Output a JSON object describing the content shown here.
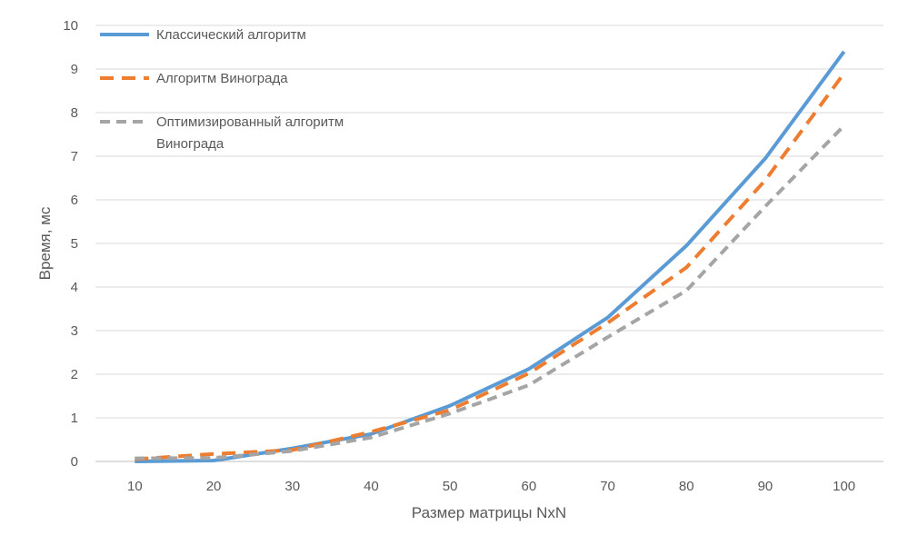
{
  "chart_data": {
    "type": "line",
    "title": "",
    "xlabel": "Размер матрицы NxN",
    "ylabel": "Время, мс",
    "categories": [
      "10",
      "20",
      "30",
      "40",
      "50",
      "60",
      "70",
      "80",
      "90",
      "100"
    ],
    "ylim": [
      0,
      10
    ],
    "yticks": [
      "0",
      "1",
      "2",
      "3",
      "4",
      "5",
      "6",
      "7",
      "8",
      "9",
      "10"
    ],
    "grid": true,
    "legend_position": "top-left",
    "series": [
      {
        "name": "Классический алгоритм",
        "color": "#5b9bd5",
        "style": "solid",
        "values": [
          0.0,
          0.02,
          0.3,
          0.63,
          1.28,
          2.12,
          3.3,
          4.95,
          6.95,
          9.4
        ]
      },
      {
        "name": "Алгоритм Винограда",
        "color": "#ed7d31",
        "style": "dashed",
        "values": [
          0.05,
          0.17,
          0.26,
          0.68,
          1.18,
          2.02,
          3.18,
          4.45,
          6.45,
          8.9
        ]
      },
      {
        "name_lines": [
          "Оптимизированный алгоритм",
          "Винограда"
        ],
        "color": "#a5a5a5",
        "style": "dashed",
        "values": [
          0.07,
          0.08,
          0.24,
          0.55,
          1.1,
          1.75,
          2.85,
          3.92,
          5.85,
          7.7
        ]
      }
    ]
  }
}
